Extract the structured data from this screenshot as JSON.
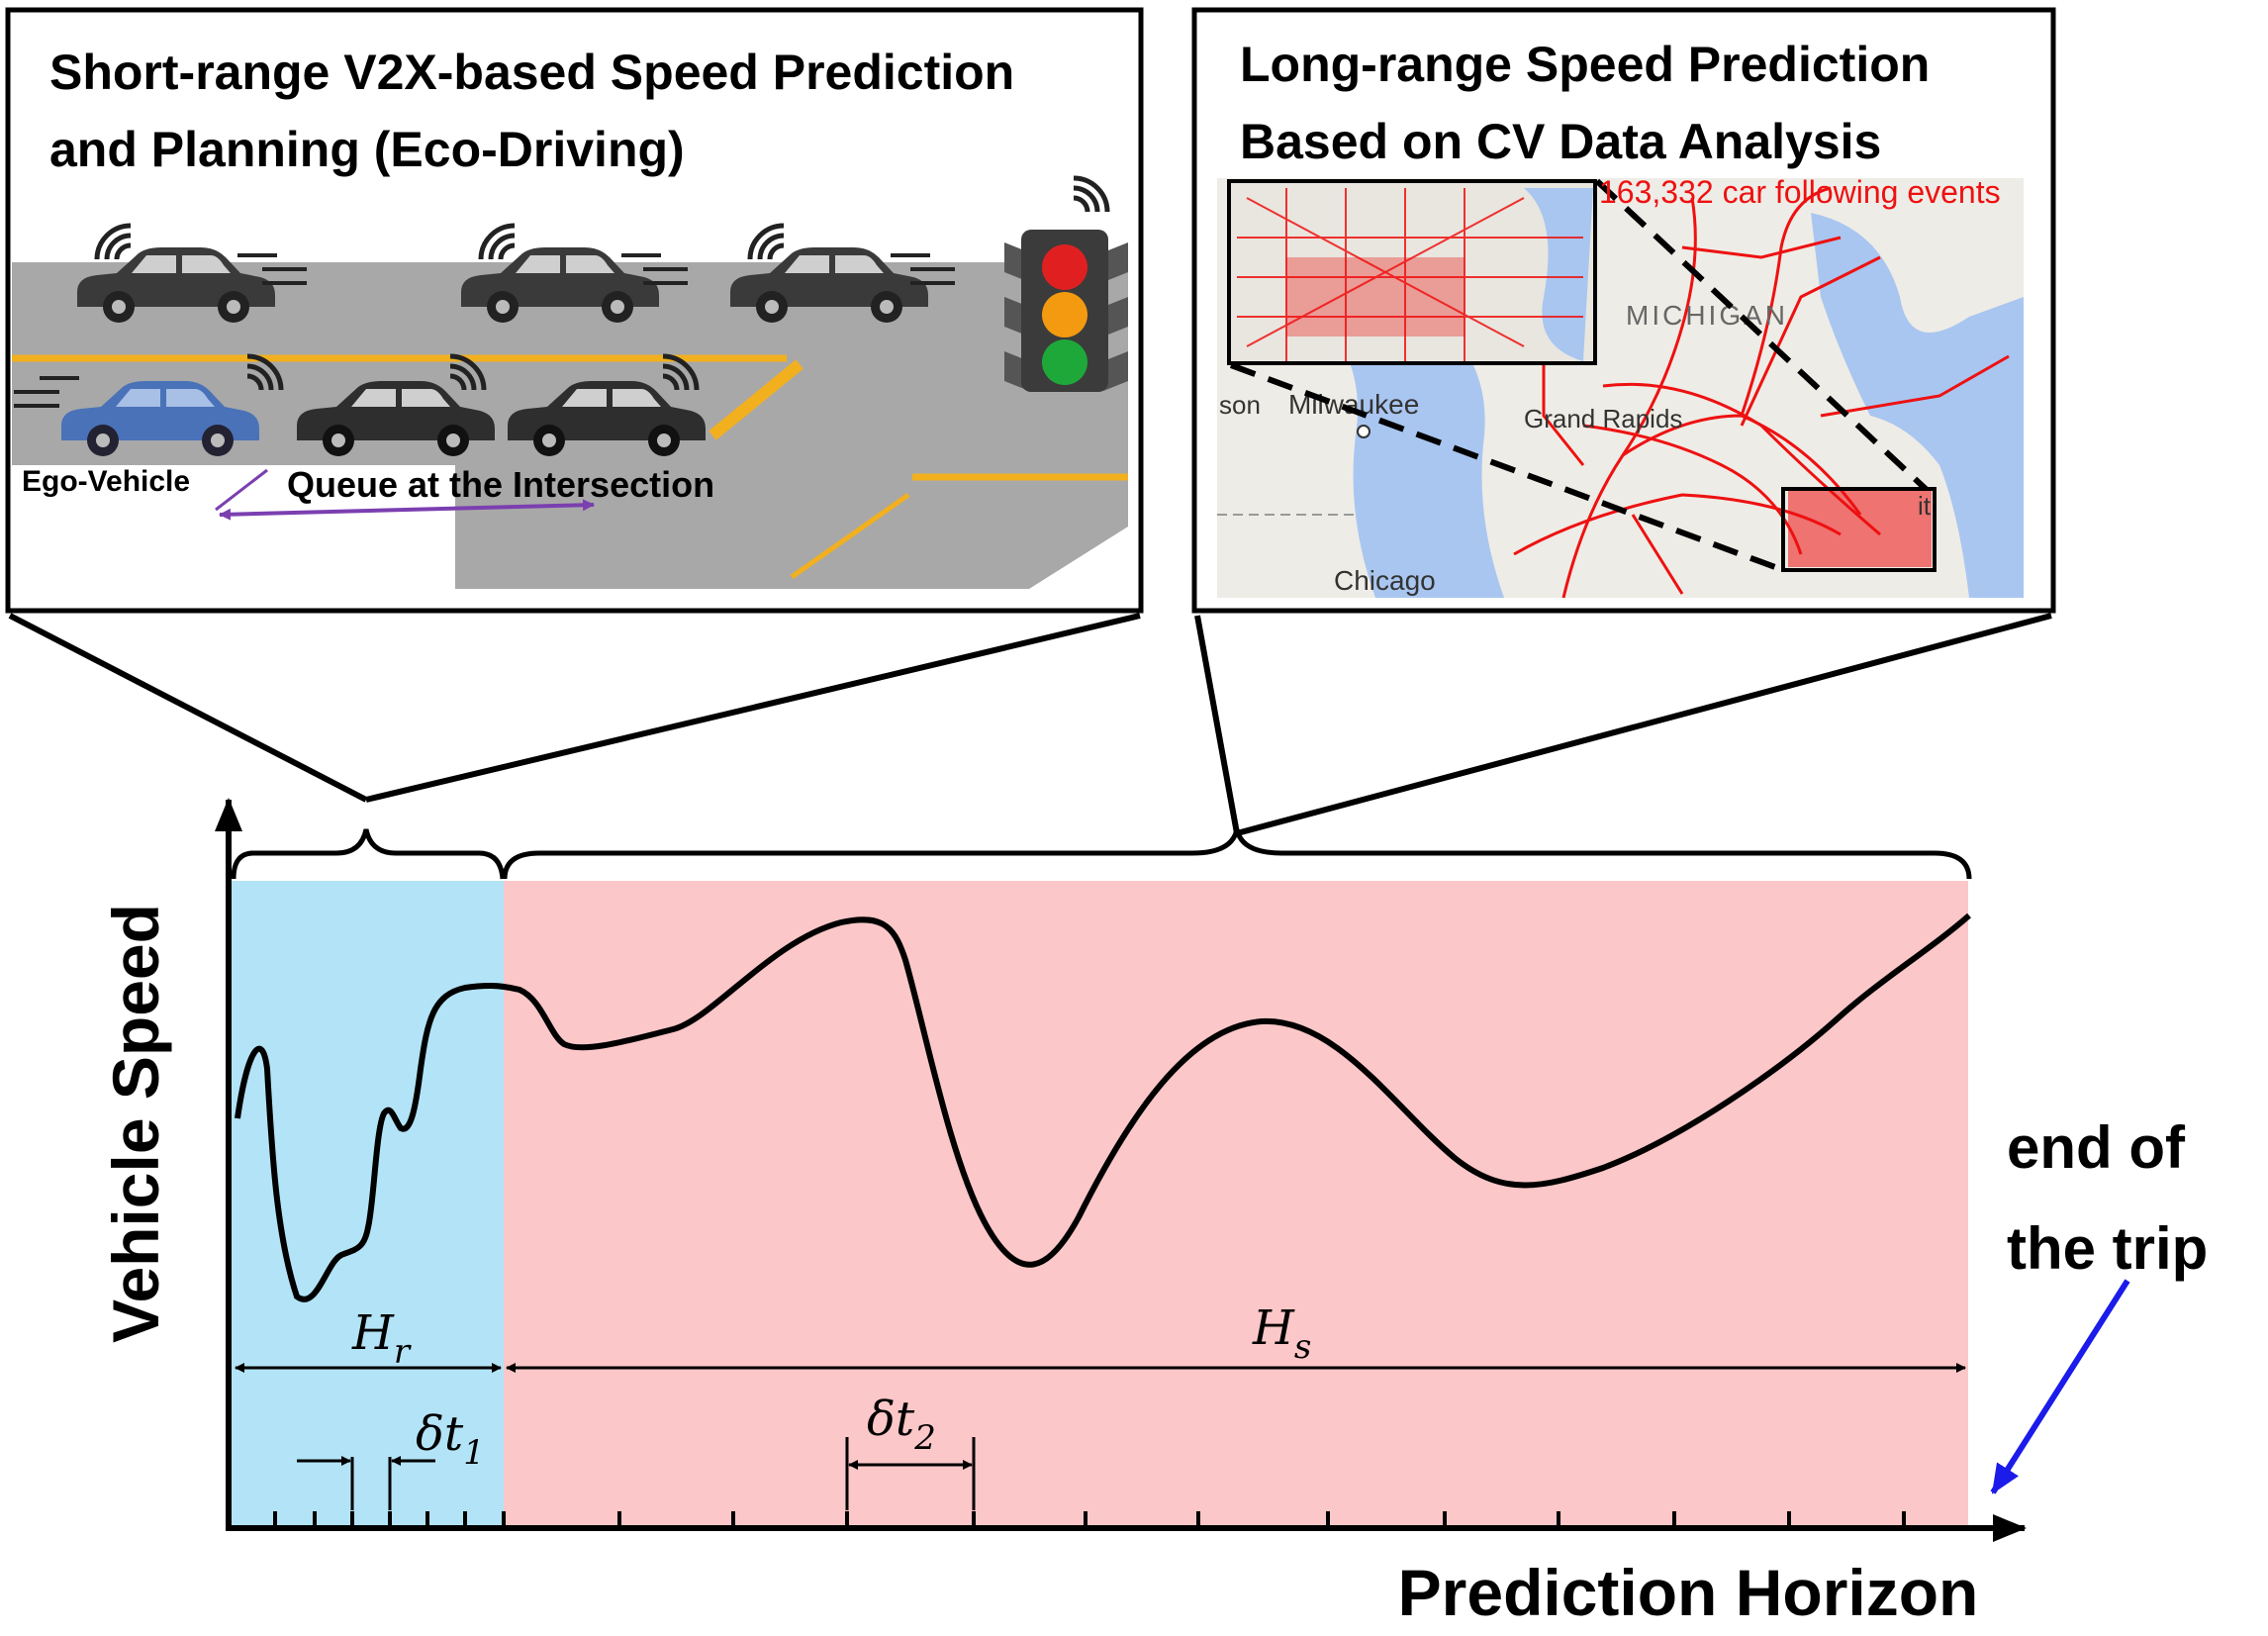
{
  "panels": {
    "short_range": {
      "title_line1": "Short-range V2X-based Speed Prediction",
      "title_line2": "and Planning (Eco-Driving)",
      "ego_label": "Ego-Vehicle",
      "queue_label": "Queue at the Intersection"
    },
    "long_range": {
      "title_line1": "Long-range Speed Prediction",
      "title_line2": "Based on CV Data Analysis",
      "events_label": "163,332 car following events",
      "map_labels": {
        "state": "MICHIGAN",
        "city1": "Milwaukee",
        "city2": "Grand Rapids",
        "city3": "Chicago",
        "partial_left": "son",
        "partial_right": "it"
      }
    }
  },
  "plot": {
    "y_axis_label": "Vehicle Speed",
    "x_axis_label": "Prediction Horizon",
    "hr_base": "H",
    "hr_sub": "r",
    "hs_base": "H",
    "hs_sub": "s",
    "dt1_base": "δt",
    "dt1_sub": "1",
    "dt2_base": "δt",
    "dt2_sub": "2",
    "end_label_line1": "end of",
    "end_label_line2": "the trip"
  },
  "colors": {
    "short_range_region": "#b3e3f6",
    "long_range_region": "#fcc7c8",
    "end_arrow": "#1b1bea",
    "queue_arrow": "#7b3fb0",
    "map_routes": "#ee1111",
    "road": "#a8a8a8",
    "lane_line": "#f2b01e"
  }
}
